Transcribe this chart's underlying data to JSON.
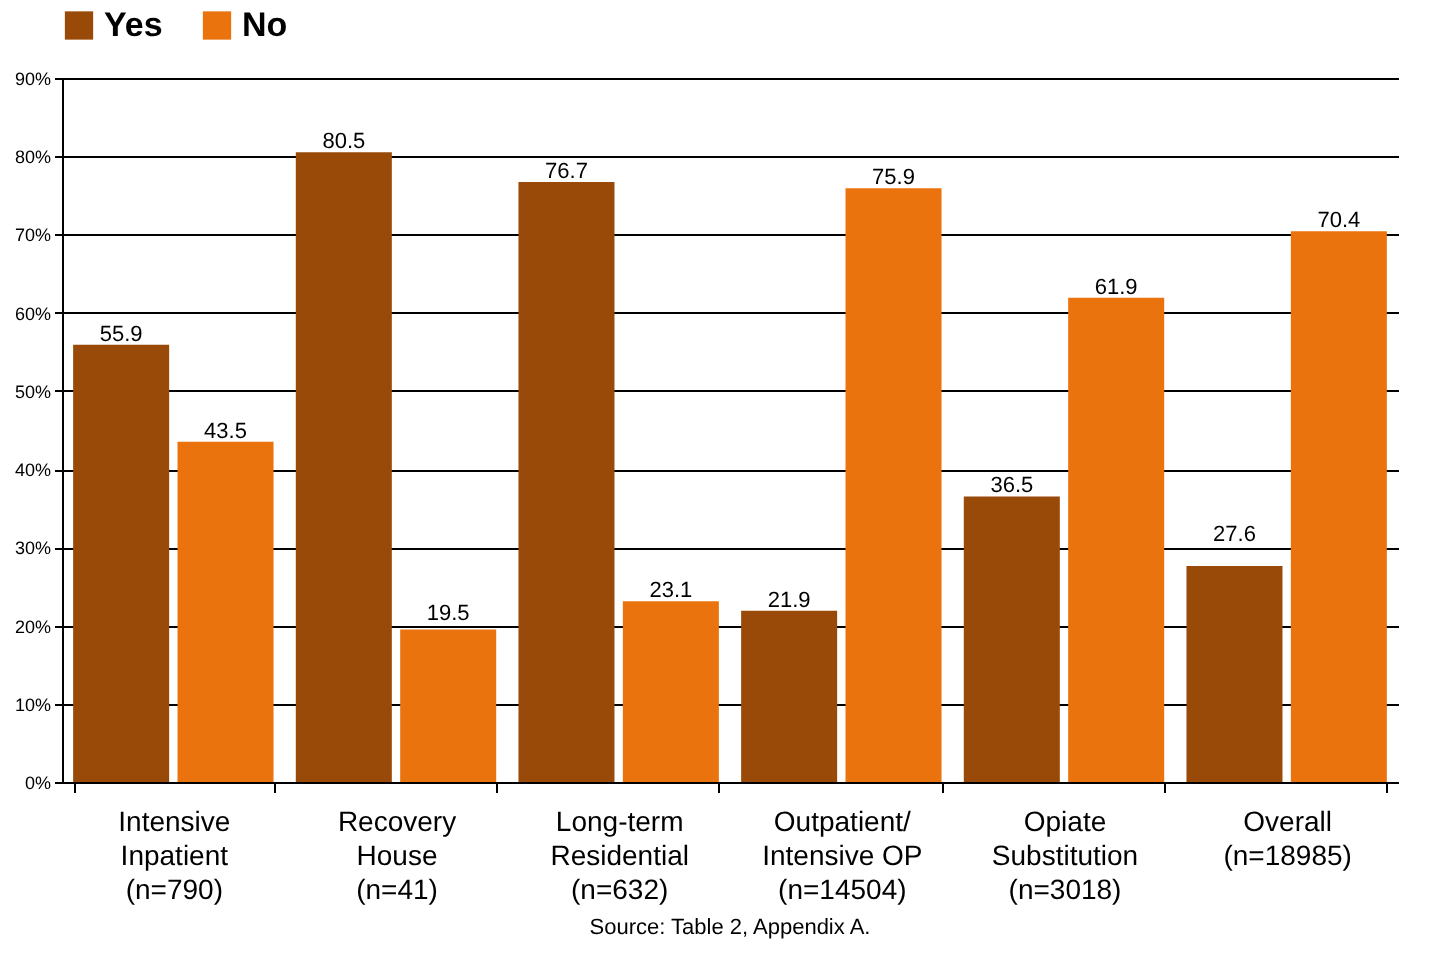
{
  "chart_data": {
    "type": "bar",
    "categories": [
      "Intensive\nInpatient\n(n=790)",
      "Recovery\nHouse\n(n=41)",
      "Long-term\nResidential\n(n=632)",
      "Outpatient/\nIntensive OP\n(n=14504)",
      "Opiate\nSubstitution\n(n=3018)",
      "Overall\n(n=18985)"
    ],
    "series": [
      {
        "name": "Yes",
        "color": "#9a4a08",
        "values": [
          55.9,
          80.5,
          76.7,
          21.9,
          36.5,
          27.6
        ]
      },
      {
        "name": "No",
        "color": "#ea730d",
        "values": [
          43.5,
          19.5,
          23.1,
          75.9,
          61.9,
          70.4
        ]
      }
    ],
    "ylim": [
      0,
      90
    ],
    "yticks": [
      {
        "value": 0,
        "label": "0%"
      },
      {
        "value": 10,
        "label": "10%"
      },
      {
        "value": 20,
        "label": "20%"
      },
      {
        "value": 30,
        "label": "30%"
      },
      {
        "value": 40,
        "label": "40%"
      },
      {
        "value": 50,
        "label": "50%"
      },
      {
        "value": 60,
        "label": "60%"
      },
      {
        "value": 70,
        "label": "70%"
      },
      {
        "value": 80,
        "label": "80%"
      },
      {
        "value": 90,
        "label": "90%"
      }
    ],
    "grid": "y",
    "legend": "top",
    "data_labels": true,
    "annotations": [
      "Source: Table 2, Appendix A."
    ]
  }
}
